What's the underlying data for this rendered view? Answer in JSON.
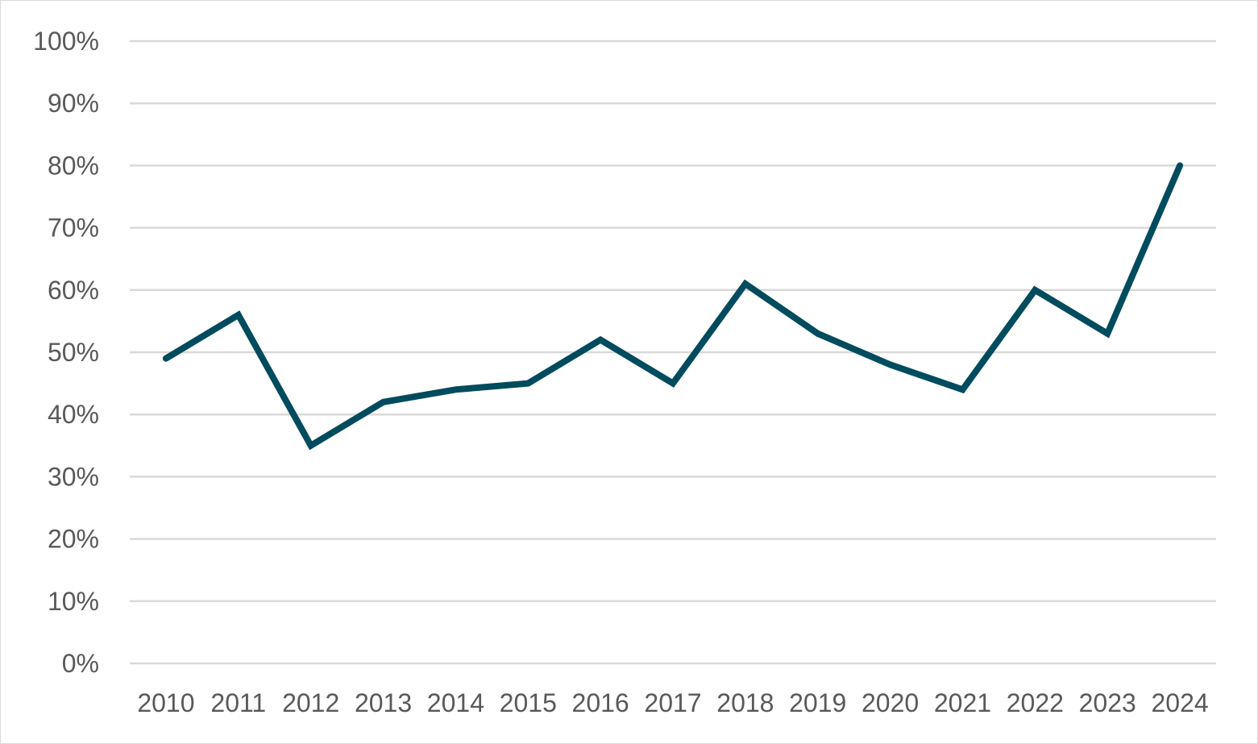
{
  "chart_data": {
    "type": "line",
    "title": "",
    "xlabel": "",
    "ylabel": "",
    "categories": [
      "2010",
      "2011",
      "2012",
      "2013",
      "2014",
      "2015",
      "2016",
      "2017",
      "2018",
      "2019",
      "2020",
      "2021",
      "2022",
      "2023",
      "2024"
    ],
    "series": [
      {
        "values": [
          0.49,
          0.56,
          0.35,
          0.42,
          0.44,
          0.45,
          0.52,
          0.45,
          0.61,
          0.53,
          0.48,
          0.44,
          0.6,
          0.53,
          0.8
        ],
        "color": "#004b5e"
      }
    ],
    "ylim": [
      0,
      1
    ],
    "y_ticks": [
      {
        "value": 0,
        "label": "0%"
      },
      {
        "value": 0.1,
        "label": "10%"
      },
      {
        "value": 0.2,
        "label": "20%"
      },
      {
        "value": 0.3,
        "label": "30%"
      },
      {
        "value": 0.4,
        "label": "40%"
      },
      {
        "value": 0.5,
        "label": "50%"
      },
      {
        "value": 0.6,
        "label": "60%"
      },
      {
        "value": 0.7,
        "label": "70%"
      },
      {
        "value": 0.8,
        "label": "80%"
      },
      {
        "value": 0.9,
        "label": "90%"
      },
      {
        "value": 1.0,
        "label": "100%"
      }
    ],
    "grid": true,
    "gridline_color": "#d9d9d9",
    "legend": "none"
  }
}
